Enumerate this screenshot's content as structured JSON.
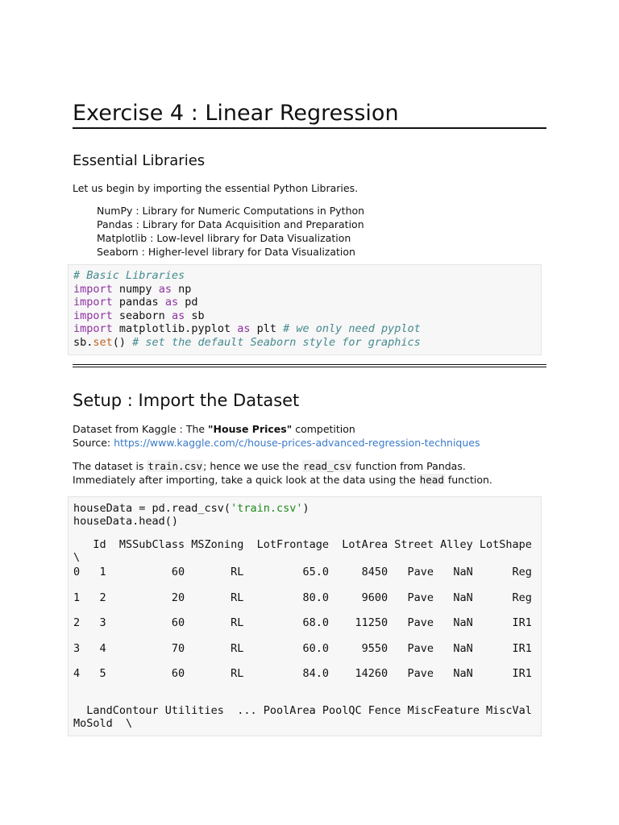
{
  "title": "Exercise 4 : Linear Regression",
  "section1": {
    "heading": "Essential Libraries",
    "intro": "Let us begin by importing the essential Python Libraries.",
    "libs": [
      "NumPy : Library for Numeric Computations in Python",
      "Pandas : Library for Data Acquisition and Preparation",
      "Matplotlib : Low-level library for Data Visualization",
      "Seaborn : Higher-level library for Data Visualization"
    ],
    "code": {
      "comment": "# Basic Libraries",
      "import_kw": "import",
      "as_kw": "as",
      "line1_mod": " numpy ",
      "line1_alias": " np",
      "line2_mod": " pandas ",
      "line2_alias": " pd",
      "line3_mod": " seaborn ",
      "line3_alias": " sb",
      "line4_mod": " matplotlib.pyplot ",
      "line4_alias": " plt ",
      "line4_comment": "# we only need pyplot",
      "line5_obj": "sb.",
      "line5_fn": "set",
      "line5_paren": "() ",
      "line5_comment": "# set the default Seaborn style for graphics"
    }
  },
  "section2": {
    "heading": "Setup : Import the Dataset",
    "dataset_prefix": "Dataset from Kaggle : The ",
    "dataset_bold": "\"House Prices\"",
    "dataset_suffix": " competition",
    "source_label": "Source: ",
    "source_link": "https://www.kaggle.com/c/house-prices-advanced-regression-techniques",
    "desc1_a": "The dataset is ",
    "desc1_code1": "train.csv",
    "desc1_b": "; hence we use the ",
    "desc1_code2": "read_csv",
    "desc1_c": " function from Pandas.",
    "desc2_a": "Immediately after importing, take a quick look at the data using the ",
    "desc2_code": "head",
    "desc2_b": " function.",
    "code": {
      "l1_a": "houseData = pd.read_csv(",
      "l1_str": "'train.csv'",
      "l1_b": ")",
      "l2": "houseData.head()"
    },
    "output": {
      "header": "   Id  MSSubClass MSZoning  LotFrontage  LotArea Street Alley LotShape",
      "cont": "\\",
      "rows": [
        "0   1          60       RL         65.0     8450   Pave   NaN      Reg",
        "1   2          20       RL         80.0     9600   Pave   NaN      Reg",
        "2   3          60       RL         68.0    11250   Pave   NaN      IR1",
        "3   4          70       RL         60.0     9550   Pave   NaN      IR1",
        "4   5          60       RL         84.0    14260   Pave   NaN      IR1"
      ],
      "header2": "  LandContour Utilities  ... PoolArea PoolQC Fence MiscFeature MiscVal",
      "header2b": "MoSold  \\"
    }
  }
}
